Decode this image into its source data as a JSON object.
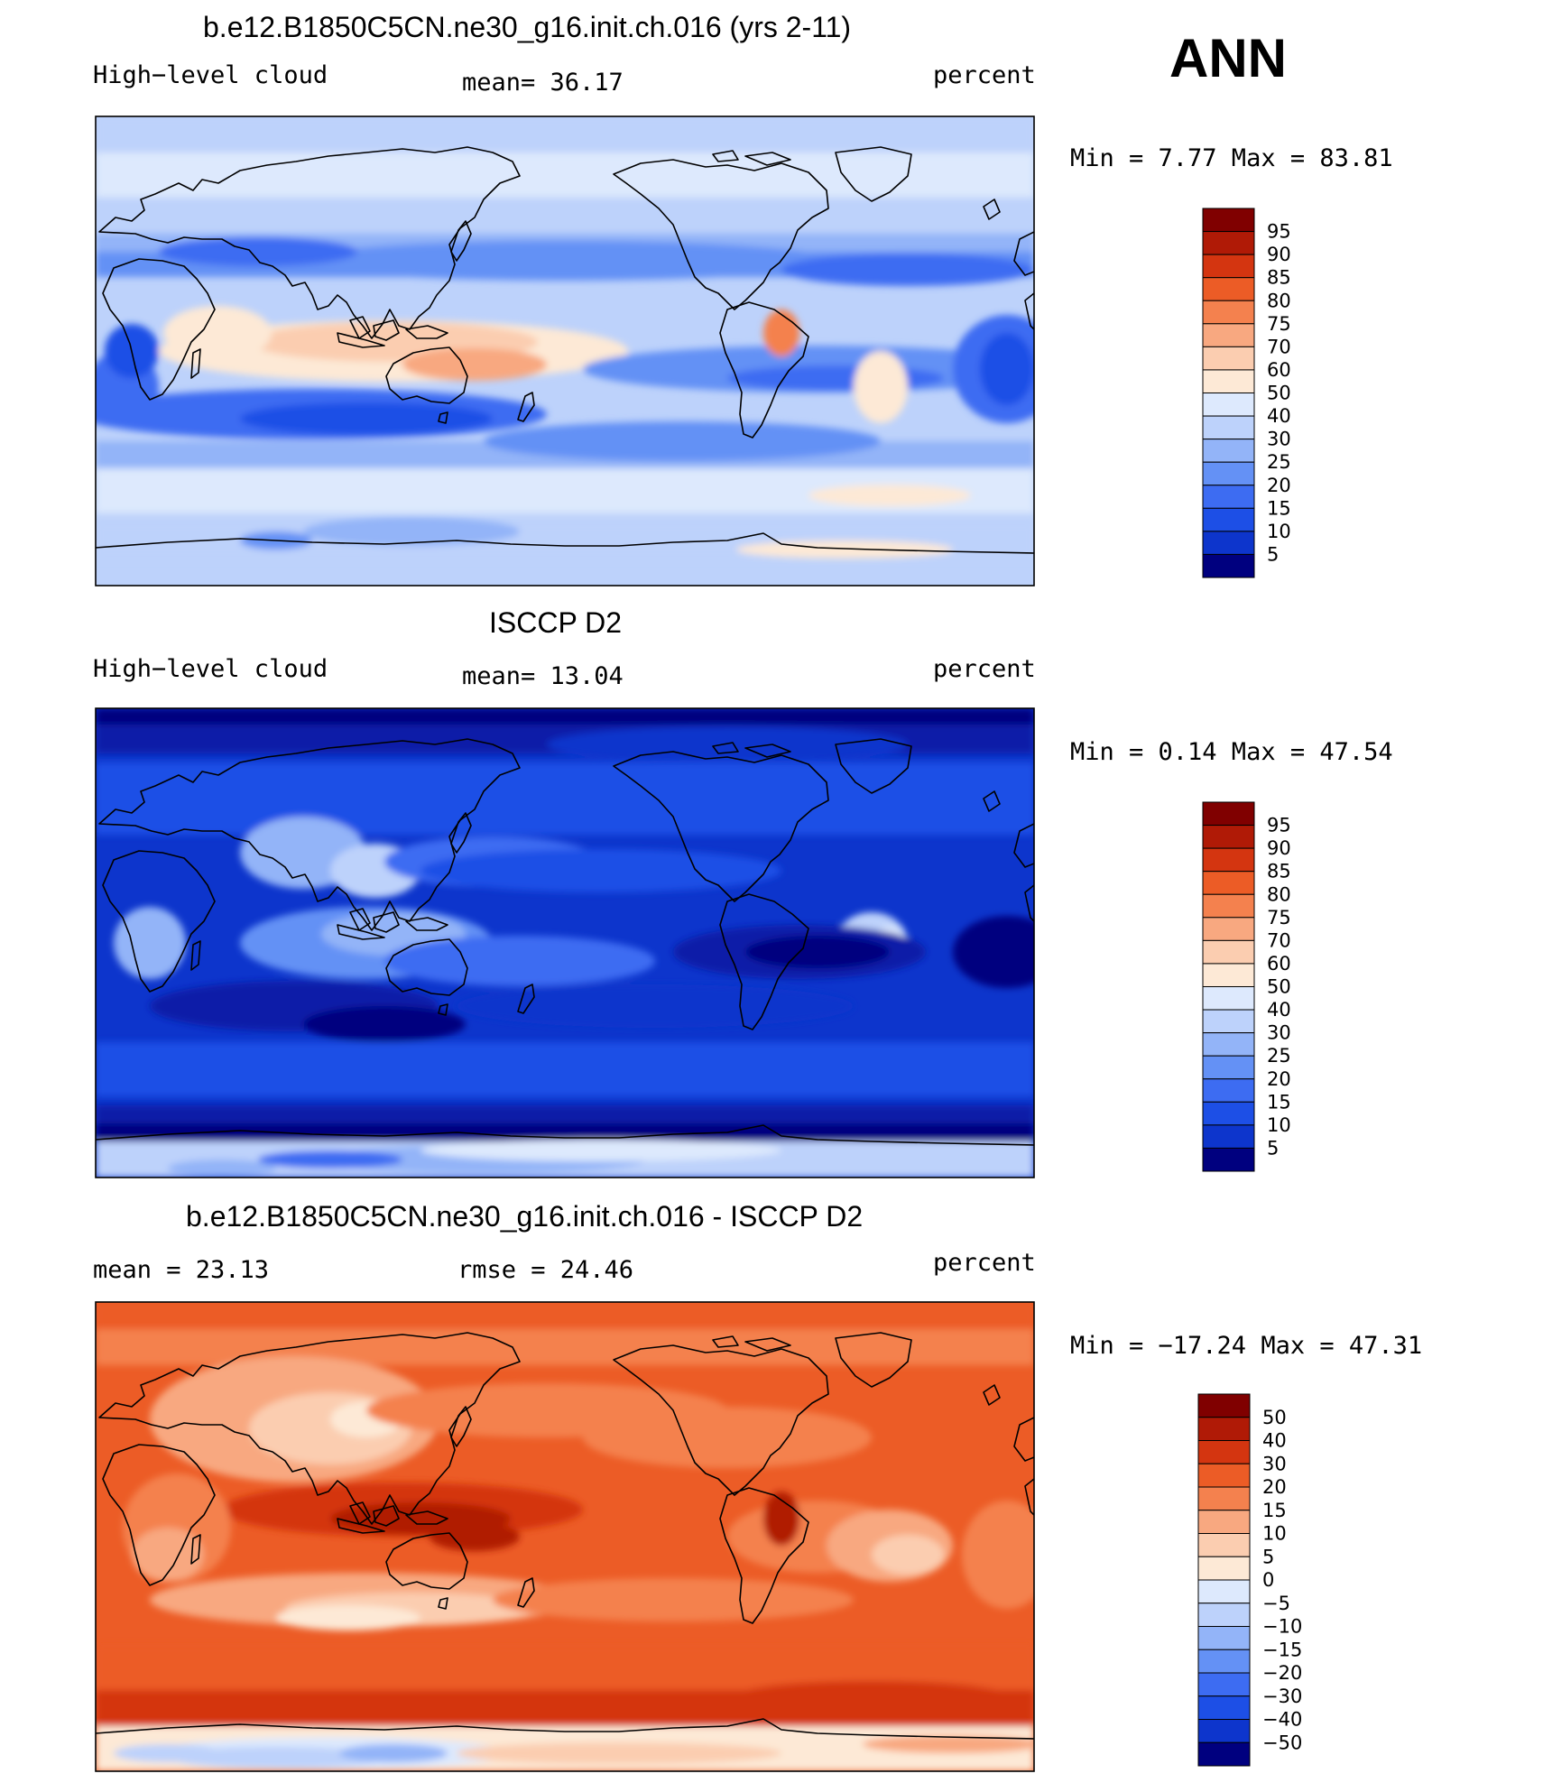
{
  "season_label": "ANN",
  "panels": [
    {
      "id": "model",
      "title": "b.e12.B1850C5CN.ne30_g16.init.ch.016 (yrs 2-11)",
      "variable": "High−level cloud",
      "stat": "mean=  36.17",
      "units": "percent",
      "minmax": "Min =    7.77 Max =   83.81",
      "colorbar_labels": [
        "95",
        "90",
        "85",
        "80",
        "75",
        "70",
        "60",
        "50",
        "40",
        "30",
        "25",
        "20",
        "15",
        "10",
        "5"
      ]
    },
    {
      "id": "obs",
      "title": "ISCCP D2",
      "variable": "High−level cloud",
      "stat": "mean=  13.04",
      "units": "percent",
      "minmax": "Min =    0.14 Max =   47.54",
      "colorbar_labels": [
        "95",
        "90",
        "85",
        "80",
        "75",
        "70",
        "60",
        "50",
        "40",
        "30",
        "25",
        "20",
        "15",
        "10",
        "5"
      ]
    },
    {
      "id": "diff",
      "title": "b.e12.B1850C5CN.ne30_g16.init.ch.016 - ISCCP D2",
      "mean": "mean =   23.13",
      "rmse": "rmse =   24.46",
      "units": "percent",
      "minmax": "Min = −17.24 Max =   47.31",
      "colorbar_labels": [
        "50",
        "40",
        "30",
        "20",
        "15",
        "10",
        "5",
        "0",
        "−5",
        "−10",
        "−15",
        "−20",
        "−30",
        "−40",
        "−50"
      ]
    }
  ],
  "colors": {
    "scale": [
      "#00007f",
      "#0a1fa8",
      "#0d35cc",
      "#1d4fe6",
      "#3d6cf2",
      "#6491f5",
      "#93b4f8",
      "#bdd2fb",
      "#dde9fd",
      "#fde9d6",
      "#fbcdb0",
      "#f8a880",
      "#f4814e",
      "#ec5c26",
      "#d43510",
      "#b01a06",
      "#800000"
    ]
  }
}
